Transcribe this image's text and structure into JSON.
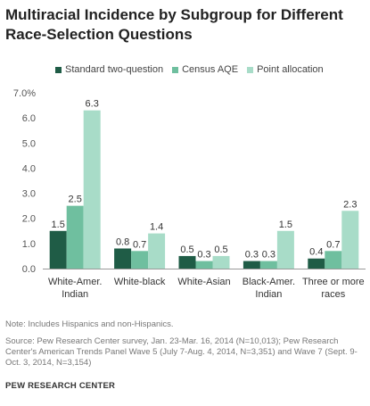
{
  "title": "Multiracial Incidence by Subgroup for Different Race-Selection Questions",
  "note": "Note: Includes Hispanics and non-Hispanics.",
  "source": "Source: Pew Research Center survey, Jan. 23-Mar. 16, 2014 (N=10,013); Pew Research Center's American Trends Panel Wave 5 (July 7-Aug. 4, 2014, N=3,351) and Wave 7 (Sept. 9-Oct. 3, 2014, N=3,154)",
  "credit": "PEW RESEARCH CENTER",
  "chart_data": {
    "type": "bar",
    "categories": [
      [
        "White-Amer.",
        "Indian"
      ],
      [
        "White-black"
      ],
      [
        "White-Asian"
      ],
      [
        "Black-Amer.",
        "Indian"
      ],
      [
        "Three or more",
        "races"
      ]
    ],
    "series": [
      {
        "name": "Standard two-question",
        "color": "#1f5c46",
        "values": [
          1.5,
          0.8,
          0.5,
          0.3,
          0.4
        ],
        "labels": [
          "1.5",
          "0.8",
          "0.5",
          "0.3",
          "0.4"
        ]
      },
      {
        "name": "Census AQE",
        "color": "#6fbf9f",
        "values": [
          2.5,
          0.7,
          0.3,
          0.3,
          0.7
        ],
        "labels": [
          "2.5",
          "0.7",
          "0.3",
          "0.3",
          "0.7"
        ]
      },
      {
        "name": "Point allocation",
        "color": "#a8dcc8",
        "values": [
          6.3,
          1.4,
          0.5,
          1.5,
          2.3
        ],
        "labels": [
          "6.3",
          "1.4",
          "0.5",
          "1.5",
          "2.3"
        ]
      }
    ],
    "yticks": [
      "0.0",
      "1.0",
      "2.0",
      "3.0",
      "4.0",
      "5.0",
      "6.0",
      "7.0%"
    ],
    "ylim": [
      0,
      7
    ],
    "grid": false,
    "legend": "top"
  }
}
